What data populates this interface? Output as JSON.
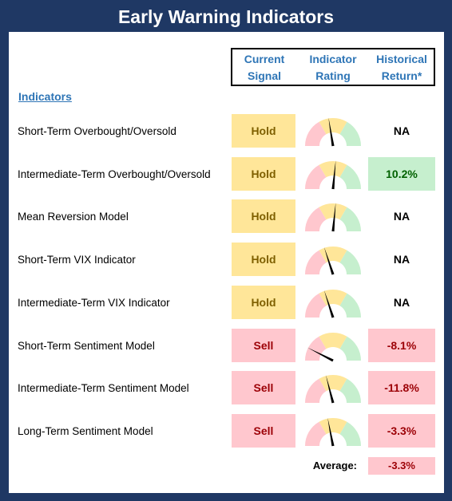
{
  "title": "Early Warning Indicators",
  "headers": {
    "signal": [
      "Current",
      "Signal"
    ],
    "rating": [
      "Indicator",
      "Rating"
    ],
    "return": [
      "Historical",
      "Return*"
    ]
  },
  "section_label": "Indicators",
  "colors": {
    "frame": "#1f3864",
    "header_text": "#2e75b6",
    "hold_bg": "#ffe699",
    "hold_text": "#7f6000",
    "sell_bg": "#ffc7ce",
    "sell_text": "#9c0006",
    "pos_bg": "#c6efce",
    "pos_text": "#006100",
    "gauge_red": "#ffc7ce",
    "gauge_yellow": "#ffe699",
    "gauge_green": "#c6efce"
  },
  "rows": [
    {
      "label": "Short-Term Overbought/Oversold",
      "signal": "Hold",
      "signal_type": "hold",
      "gauge_pct": 0.45,
      "return": "NA",
      "return_type": "na"
    },
    {
      "label": "Intermediate-Term Overbought/Oversold",
      "signal": "Hold",
      "signal_type": "hold",
      "gauge_pct": 0.53,
      "return": "10.2%",
      "return_type": "pos"
    },
    {
      "label": "Mean Reversion Model",
      "signal": "Hold",
      "signal_type": "hold",
      "gauge_pct": 0.53,
      "return": "NA",
      "return_type": "na"
    },
    {
      "label": "Short-Term VIX Indicator",
      "signal": "Hold",
      "signal_type": "hold",
      "gauge_pct": 0.4,
      "return": "NA",
      "return_type": "na"
    },
    {
      "label": "Intermediate-Term VIX Indicator",
      "signal": "Hold",
      "signal_type": "hold",
      "gauge_pct": 0.4,
      "return": "NA",
      "return_type": "na"
    },
    {
      "label": "Short-Term Sentiment Model",
      "signal": "Sell",
      "signal_type": "sell",
      "gauge_pct": 0.15,
      "return": "-8.1%",
      "return_type": "neg"
    },
    {
      "label": "Intermediate-Term Sentiment Model",
      "signal": "Sell",
      "signal_type": "sell",
      "gauge_pct": 0.42,
      "return": "-11.8%",
      "return_type": "neg"
    },
    {
      "label": "Long-Term Sentiment Model",
      "signal": "Sell",
      "signal_type": "sell",
      "gauge_pct": 0.44,
      "return": "-3.3%",
      "return_type": "neg"
    }
  ],
  "average": {
    "label": "Average:",
    "value": "-3.3%"
  }
}
